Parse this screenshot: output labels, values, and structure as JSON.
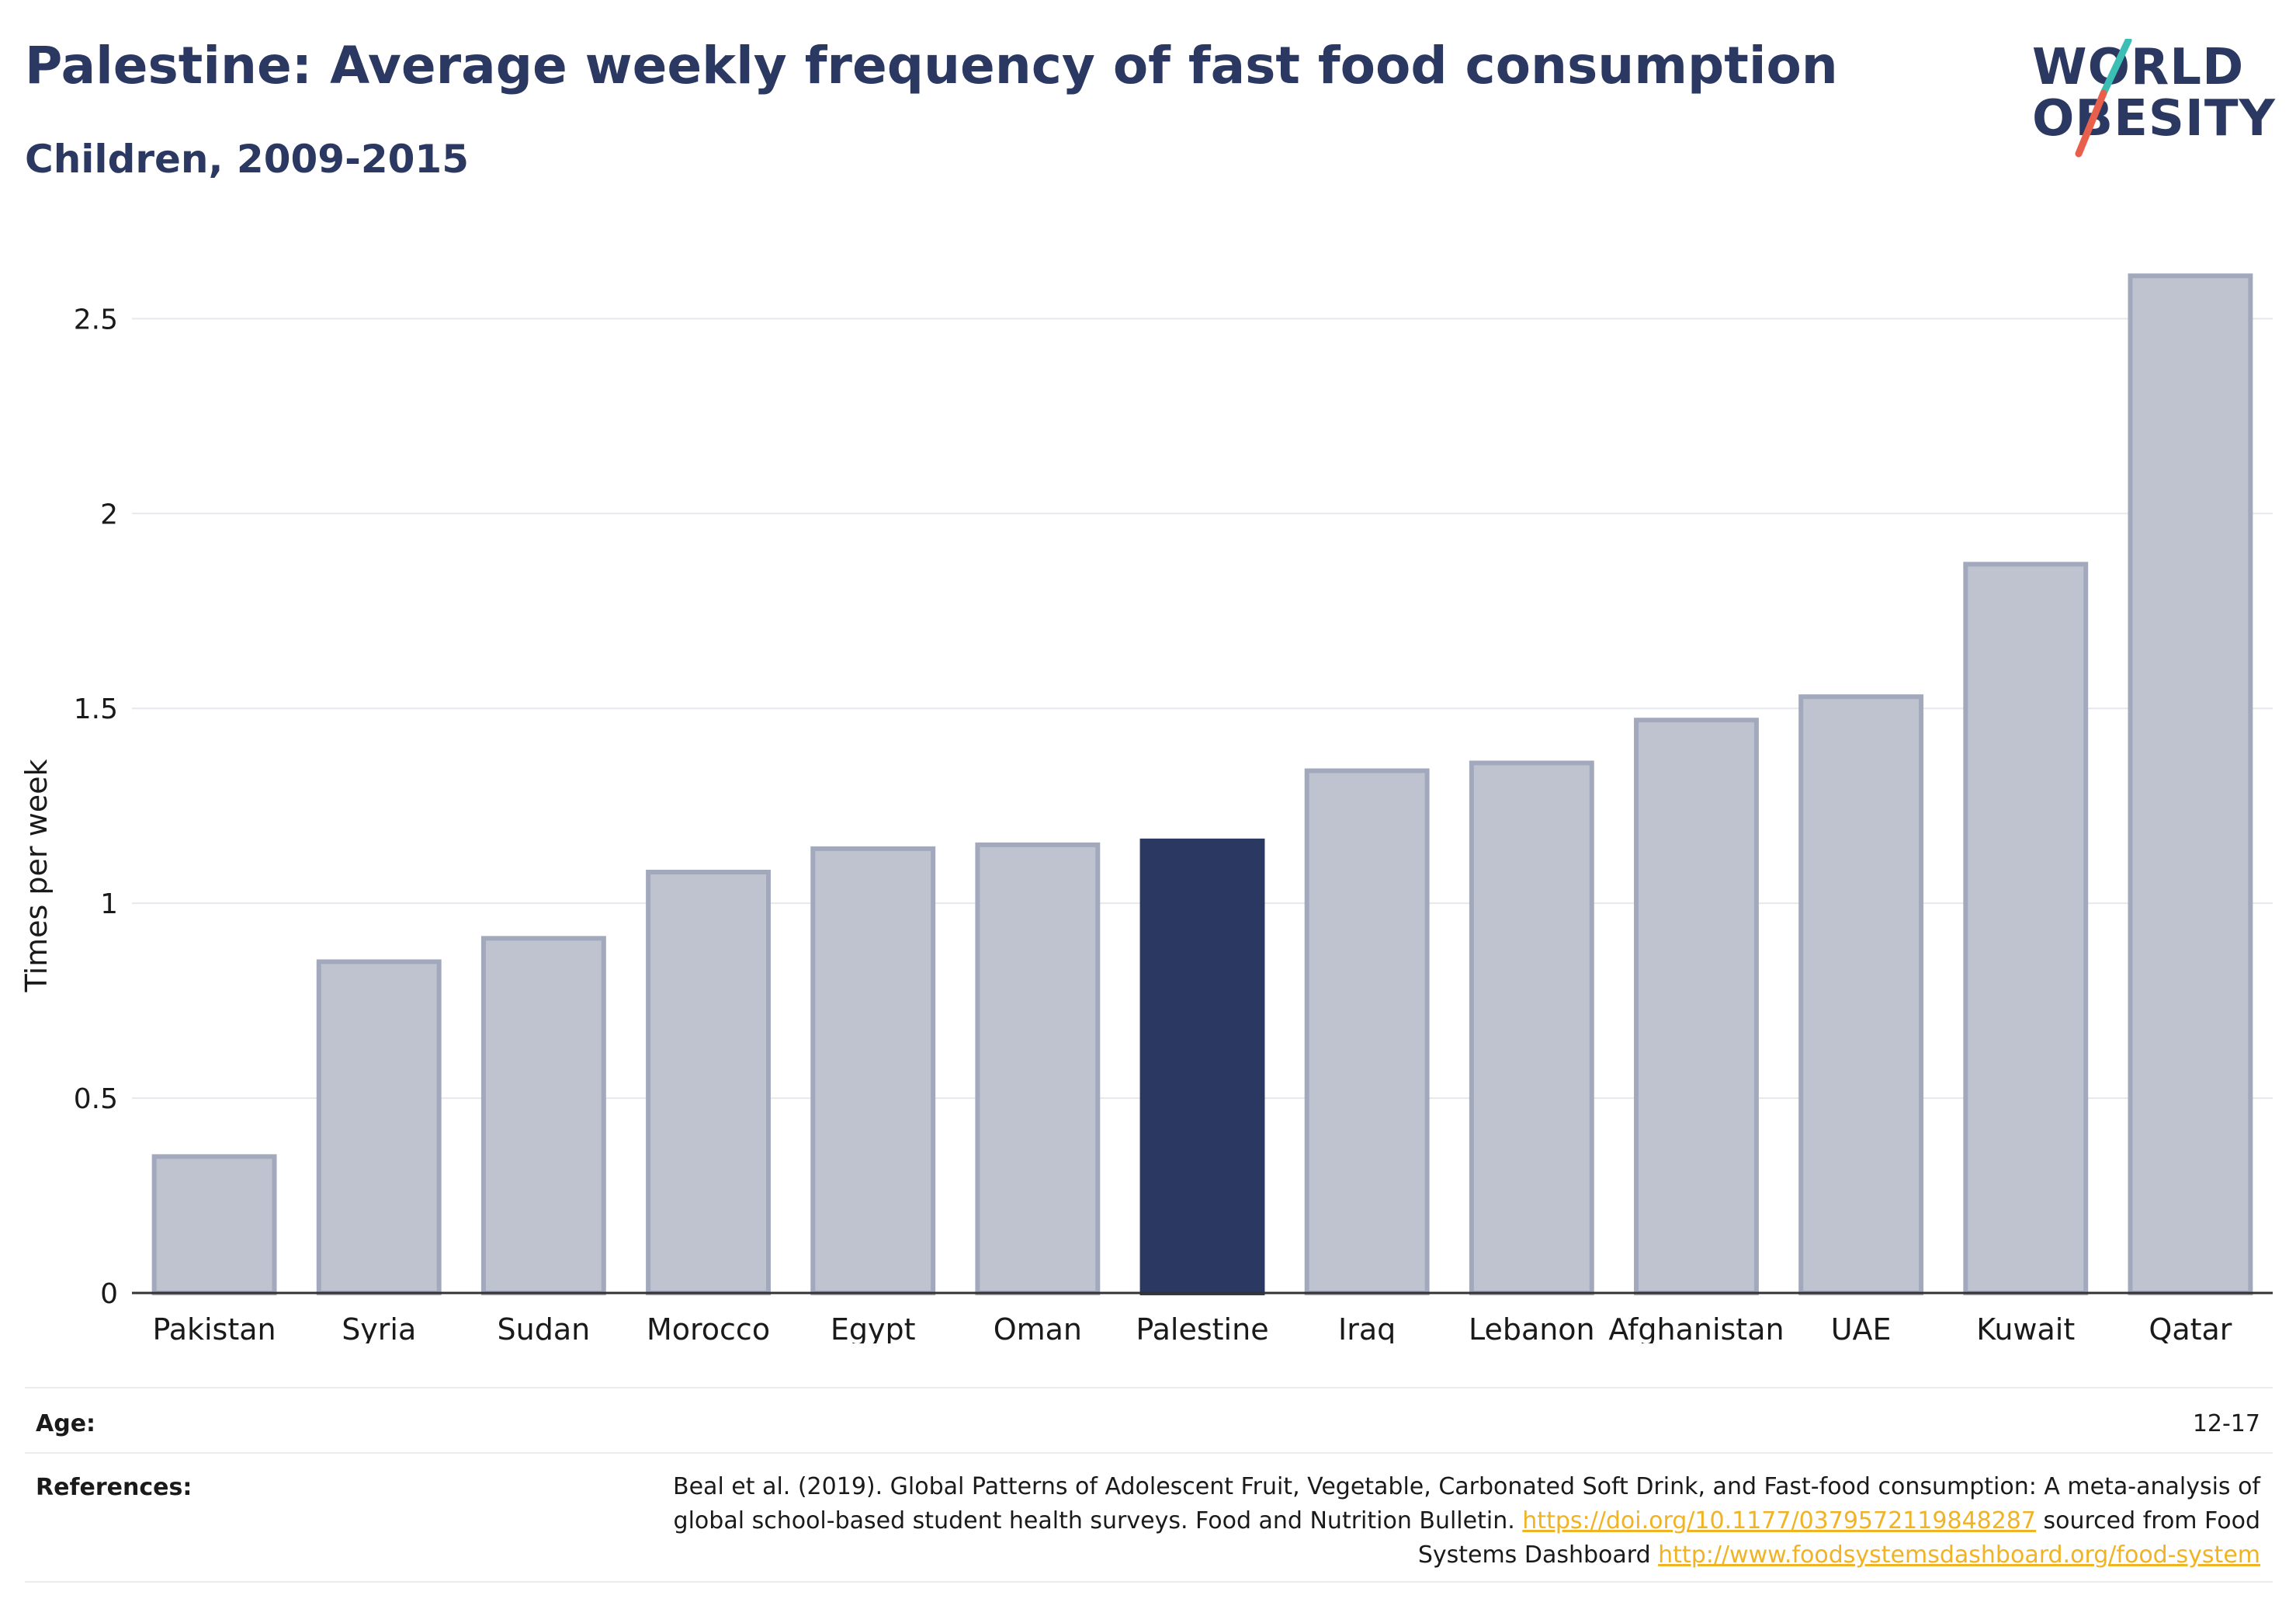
{
  "header": {
    "title": "Palestine: Average weekly frequency of fast food consumption",
    "subtitle": "Children, 2009-2015"
  },
  "logo": {
    "line1": "WORLD",
    "line2": "OBESITY",
    "colors": {
      "text": "#2b3862",
      "slash_top": "#3bbfb4",
      "slash_bottom": "#e8604c"
    }
  },
  "chart_data": {
    "type": "bar",
    "categories": [
      "Pakistan",
      "Syria",
      "Sudan",
      "Morocco",
      "Egypt",
      "Oman",
      "Palestine",
      "Iraq",
      "Lebanon",
      "Afghanistan",
      "UAE",
      "Kuwait",
      "Qatar"
    ],
    "values": [
      0.35,
      0.85,
      0.91,
      1.08,
      1.14,
      1.15,
      1.16,
      1.34,
      1.36,
      1.47,
      1.53,
      1.87,
      2.61
    ],
    "highlight": "Palestine",
    "ylabel": "Times per week",
    "xlabel": "",
    "ylim": [
      0,
      2.7
    ],
    "yticks": [
      0,
      0.5,
      1,
      1.5,
      2,
      2.5
    ],
    "ytick_labels": [
      "0",
      "0.5",
      "1",
      "1.5",
      "2",
      "2.5"
    ],
    "grid": true,
    "colors": {
      "bar": "#bfc3cf",
      "bar_edge": "#a3a9bd",
      "highlight": "#2b3862"
    }
  },
  "meta": {
    "age_label": "Age:",
    "age_value": "12-17",
    "references_label": "References:",
    "references_text_1": "Beal et al. (2019). Global Patterns of Adolescent Fruit, Vegetable, Carbonated Soft Drink, and Fast-food consumption: A meta-analysis of global school-based student health surveys. Food and Nutrition Bulletin. ",
    "references_link_1": "https://doi.org/10.1177/0379572119848287",
    "references_text_2": " sourced from Food Systems Dashboard ",
    "references_link_2": "http://www.foodsystemsdashboard.org/food-system"
  }
}
